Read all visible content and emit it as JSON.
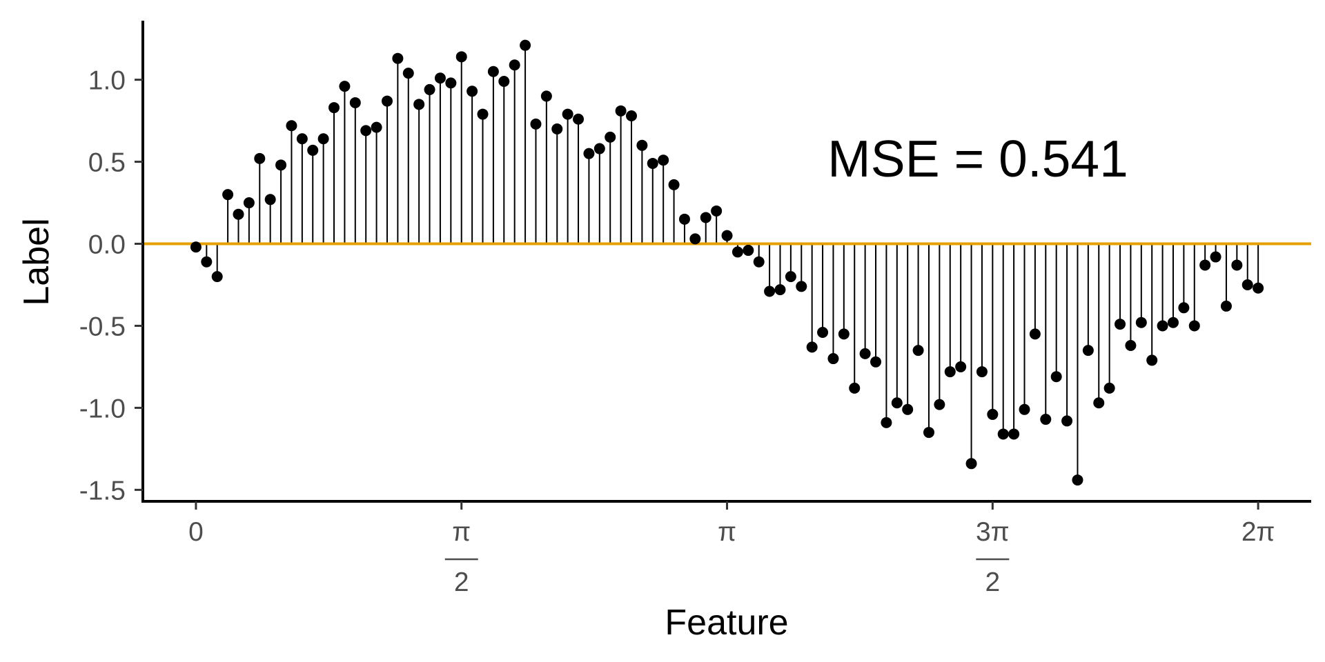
{
  "chart_data": {
    "type": "scatter",
    "title": "",
    "xlabel": "Feature",
    "ylabel": "Label",
    "annotation": "MSE = 0.541",
    "xlim": [
      -0.314,
      6.597
    ],
    "ylim": [
      -1.57,
      1.36
    ],
    "x_ticks": [
      {
        "value": 0,
        "label": "0"
      },
      {
        "value": 1.5708,
        "numerator": "π",
        "denominator": "2"
      },
      {
        "value": 3.1416,
        "label": "π"
      },
      {
        "value": 4.7124,
        "numerator": "3π",
        "denominator": "2"
      },
      {
        "value": 6.2832,
        "label": "2π"
      }
    ],
    "y_ticks": [
      {
        "value": 1.0,
        "label": "1.0"
      },
      {
        "value": 0.5,
        "label": "0.5"
      },
      {
        "value": 0.0,
        "label": "0.0"
      },
      {
        "value": -0.5,
        "label": "-0.5"
      },
      {
        "value": -1.0,
        "label": "-1.0"
      },
      {
        "value": -1.5,
        "label": "-1.5"
      }
    ],
    "grid": false,
    "legend": "none",
    "reference_line": {
      "y": 0,
      "color": "#E69F00"
    },
    "point_color": "#000000",
    "x_start": 0,
    "x_end": 6.2832,
    "y": [
      -0.02,
      -0.11,
      -0.2,
      0.3,
      0.18,
      0.25,
      0.52,
      0.27,
      0.48,
      0.72,
      0.64,
      0.57,
      0.64,
      0.83,
      0.96,
      0.86,
      0.69,
      0.71,
      0.87,
      1.13,
      1.04,
      0.85,
      0.94,
      1.01,
      0.98,
      1.14,
      0.93,
      0.79,
      1.05,
      0.99,
      1.09,
      1.21,
      0.73,
      0.9,
      0.7,
      0.79,
      0.76,
      0.55,
      0.58,
      0.65,
      0.81,
      0.78,
      0.6,
      0.49,
      0.51,
      0.36,
      0.15,
      0.03,
      0.16,
      0.2,
      0.05,
      -0.05,
      -0.04,
      -0.11,
      -0.29,
      -0.28,
      -0.2,
      -0.26,
      -0.63,
      -0.54,
      -0.7,
      -0.55,
      -0.88,
      -0.67,
      -0.72,
      -1.09,
      -0.97,
      -1.01,
      -0.65,
      -1.15,
      -0.98,
      -0.78,
      -0.75,
      -1.34,
      -0.78,
      -1.04,
      -1.16,
      -1.16,
      -1.01,
      -0.55,
      -1.07,
      -0.81,
      -1.08,
      -1.44,
      -0.65,
      -0.97,
      -0.88,
      -0.49,
      -0.62,
      -0.48,
      -0.71,
      -0.5,
      -0.48,
      -0.39,
      -0.5,
      -0.13,
      -0.08,
      -0.38,
      -0.13,
      -0.25,
      -0.27
    ]
  }
}
